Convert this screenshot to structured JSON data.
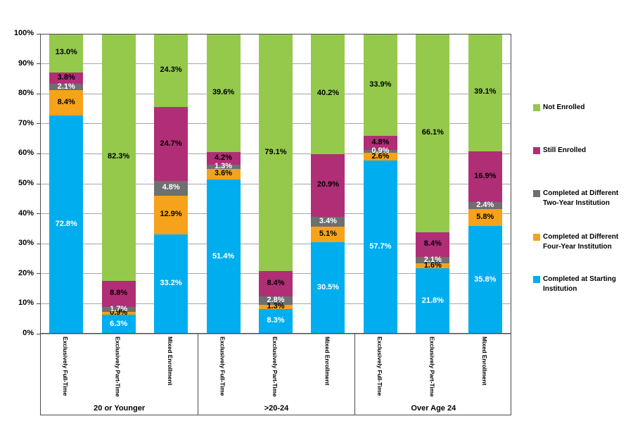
{
  "chart_data": {
    "type": "bar",
    "stacked": true,
    "title": "",
    "unit": "percent",
    "gridlines": true,
    "legend_position": "right",
    "y_axis": {
      "min": 0,
      "max": 100,
      "ticks": [
        "0%",
        "10%",
        "20%",
        "30%",
        "40%",
        "50%",
        "60%",
        "70%",
        "80%",
        "90%",
        "100%"
      ]
    },
    "groups": [
      {
        "label": "20 or Younger",
        "categories": [
          "Exclusively Full-Time",
          "Exclusively Part-Time",
          "Mixed Enrollment"
        ]
      },
      {
        "label": ">20-24",
        "categories": [
          "Exclusively Full-Time",
          "Exclusively Part-Time",
          "Mixed Enrollment"
        ]
      },
      {
        "label": "Over Age 24",
        "categories": [
          "Exclusively Full-Time",
          "Exclusively Part-Time",
          "Mixed Enrollment"
        ]
      }
    ],
    "series": [
      {
        "name": "Completed at Starting Institution",
        "color": "#00AEEF",
        "label_color": "#FFFFFF",
        "values": [
          72.8,
          6.3,
          33.2,
          51.4,
          8.3,
          30.5,
          57.7,
          21.8,
          35.8
        ]
      },
      {
        "name": "Completed at Different Four-Year Institution",
        "color": "#F7A21B",
        "label_color": "#000000",
        "values": [
          8.4,
          0.9,
          12.9,
          3.6,
          1.3,
          5.1,
          2.6,
          1.6,
          5.8
        ]
      },
      {
        "name": "Completed at Different Two-Year Institution",
        "color": "#6E6F71",
        "label_color": "#FFFFFF",
        "values": [
          2.1,
          1.7,
          4.8,
          1.3,
          2.8,
          3.4,
          0.9,
          2.1,
          2.4
        ]
      },
      {
        "name": "Still Enrolled",
        "color": "#B02E76",
        "label_color": "#000000",
        "values": [
          3.8,
          8.8,
          24.7,
          4.2,
          8.4,
          20.9,
          4.8,
          8.4,
          16.9
        ]
      },
      {
        "name": "Not Enrolled",
        "color": "#94C94C",
        "label_color": "#000000",
        "values": [
          13.0,
          82.3,
          24.3,
          39.6,
          79.1,
          40.2,
          33.9,
          66.1,
          39.1
        ]
      }
    ]
  },
  "legend": {
    "items": [
      {
        "label": "Not Enrolled",
        "color": "#94C94C"
      },
      {
        "label": "Still Enrolled",
        "color": "#B02E76"
      },
      {
        "label": "Completed at Different\nTwo-Year  Institution",
        "color": "#6E6F71"
      },
      {
        "label": "Completed at Different\nFour-Year  Institution",
        "color": "#F7A21B"
      },
      {
        "label": "Completed at Starting\nInstitution",
        "color": "#00AEEF"
      }
    ]
  },
  "colors": {
    "gridline": "#A6A6A6",
    "frame": "#4a4a4a",
    "background": "#FFFFFF"
  }
}
